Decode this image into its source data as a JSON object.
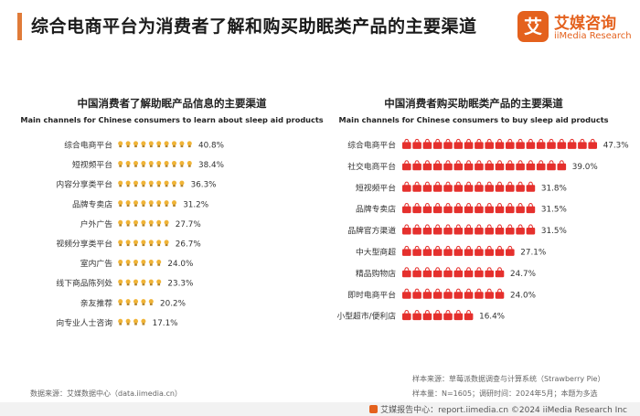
{
  "header": {
    "title": "综合电商平台为消费者了解和购买助眠类产品的主要渠道",
    "logo_cn": "艾媒咨询",
    "logo_en": "iiMedia Research",
    "logo_mark": "艾"
  },
  "colors": {
    "accent": "#e07b39",
    "learn_icon": "#f0b437",
    "buy_icon": "#e5302d"
  },
  "chart_data": [
    {
      "type": "bar",
      "icon": "lightbulb",
      "title": "中国消费者了解助眠产品信息的主要渠道",
      "subtitle": "Main channels for Chinese consumers to learn about sleep aid products",
      "categories": [
        "综合电商平台",
        "短视频平台",
        "内容分享类平台",
        "品牌专卖店",
        "户外广告",
        "视频分享类平台",
        "室内广告",
        "线下商品陈列处",
        "亲友推荐",
        "向专业人士咨询"
      ],
      "values": [
        40.8,
        38.4,
        36.3,
        31.2,
        27.7,
        26.7,
        24.0,
        23.3,
        20.2,
        17.1
      ],
      "value_labels": [
        "40.8%",
        "38.4%",
        "36.3%",
        "31.2%",
        "27.7%",
        "26.7%",
        "24.0%",
        "23.3%",
        "20.2%",
        "17.1%"
      ],
      "unit": "%"
    },
    {
      "type": "bar",
      "icon": "shopping-bag",
      "title": "中国消费者购买助眠类产品的主要渠道",
      "subtitle": "Main channels for Chinese consumers to buy sleep aid products",
      "categories": [
        "综合电商平台",
        "社交电商平台",
        "短视频平台",
        "品牌专卖店",
        "品牌官方渠道",
        "中大型商超",
        "精品购物店",
        "即时电商平台",
        "小型超市/便利店"
      ],
      "values": [
        47.3,
        39.0,
        31.8,
        31.5,
        31.5,
        27.1,
        24.7,
        24.0,
        16.4
      ],
      "value_labels": [
        "47.3%",
        "39.0%",
        "31.8%",
        "31.5%",
        "31.5%",
        "27.1%",
        "24.7%",
        "24.0%",
        "16.4%"
      ],
      "unit": "%"
    }
  ],
  "footer": {
    "source_left": "数据来源：艾媒数据中心（data.iimedia.cn）",
    "source_right_1": "样本来源：草莓派数据调查与计算系统（Strawberry Pie）",
    "source_right_2": "样本量：N=1605；调研时间：2024年5月；本题为多选",
    "bottom": "艾媒报告中心：report.iimedia.cn   ©2024  iiMedia Research Inc"
  }
}
